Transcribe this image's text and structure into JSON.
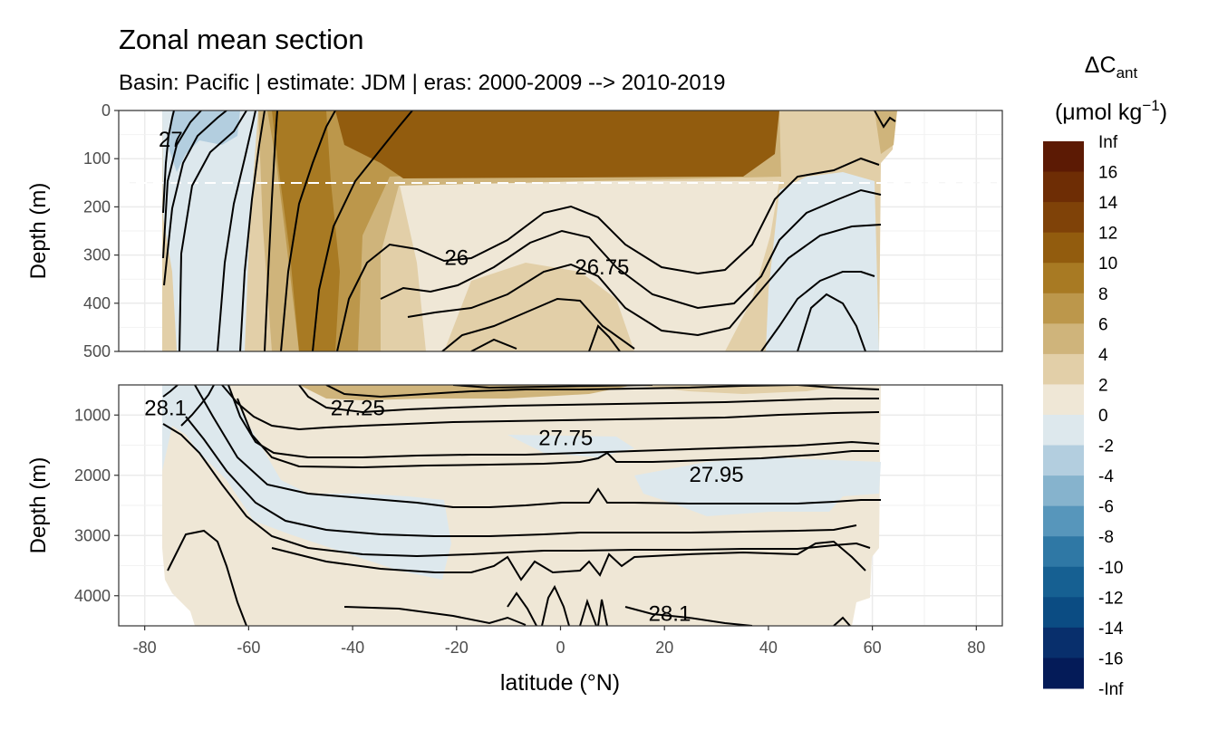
{
  "title": "Zonal mean section",
  "subtitle": "Basin: Pacific | estimate: JDM  | eras: 2000-2009 --> 2010-2019",
  "chart_data": {
    "type": "contour",
    "xlabel": "latitude (°N)",
    "x_ticks": [
      "-80",
      "-60",
      "-40",
      "-20",
      "0",
      "20",
      "40",
      "60",
      "80"
    ],
    "x_tick_values": [
      -80,
      -60,
      -40,
      -20,
      0,
      20,
      40,
      60,
      80
    ],
    "xlim": [
      -85,
      85
    ],
    "panels": [
      {
        "name": "upper",
        "ylabel": "Depth (m)",
        "y_ticks": [
          "0",
          "100",
          "200",
          "300",
          "400",
          "500"
        ],
        "y_tick_values": [
          0,
          100,
          200,
          300,
          400,
          500
        ],
        "ylim": [
          0,
          500
        ],
        "reference_line_depth": 150,
        "contour_labels": [
          {
            "text": "26",
            "lat": -20,
            "depth": 305
          },
          {
            "text": "26.75",
            "lat": 8,
            "depth": 325
          },
          {
            "text": "27",
            "lat": -75,
            "depth": 60
          }
        ]
      },
      {
        "name": "lower",
        "ylabel": "Depth (m)",
        "y_ticks": [
          "1000",
          "2000",
          "3000",
          "4000"
        ],
        "y_tick_values": [
          1000,
          2000,
          3000,
          4000
        ],
        "ylim": [
          500,
          4500
        ],
        "contour_labels": [
          {
            "text": "28.1",
            "lat": -76,
            "depth": 880
          },
          {
            "text": "27.25",
            "lat": -39,
            "depth": 880
          },
          {
            "text": "27.75",
            "lat": 1,
            "depth": 1380
          },
          {
            "text": "27.95",
            "lat": 30,
            "depth": 1990
          },
          {
            "text": "28.1",
            "lat": 21,
            "depth": 4300
          }
        ]
      }
    ],
    "legend": {
      "title_main": "ΔC",
      "title_sub": "ant",
      "title_unit": "(μmol kg",
      "title_sup": "−1",
      "title_close": ")",
      "placement": "right",
      "labels": [
        "Inf",
        "16",
        "14",
        "12",
        "10",
        "8",
        "6",
        "4",
        "2",
        "0",
        "-2",
        "-4",
        "-6",
        "-8",
        "-10",
        "-12",
        "-14",
        "-16",
        "-Inf"
      ],
      "colors": [
        "#5c1a04",
        "#6e2d05",
        "#7f4208",
        "#925c0e",
        "#a87a23",
        "#bc974b",
        "#cfb47b",
        "#e2cfa8",
        "#efe7d6",
        "#dde8ed",
        "#b3cedf",
        "#86b3cd",
        "#5796bb",
        "#2f78a5",
        "#166092",
        "#0b4c83",
        "#082f6c",
        "#041b58"
      ]
    }
  }
}
